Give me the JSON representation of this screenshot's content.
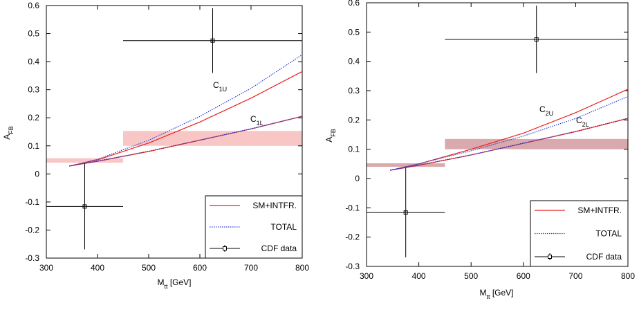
{
  "chart_data": [
    {
      "type": "line",
      "xlabel": {
        "base": "M",
        "sub": "tt",
        "rest": " [GeV]"
      },
      "ylabel": {
        "base": "A",
        "sub": "FB"
      },
      "xlim": [
        300,
        800
      ],
      "xticks": [
        300,
        400,
        500,
        600,
        700,
        800
      ],
      "ylim": [
        -0.3,
        0.6
      ],
      "yticks": [
        -0.3,
        -0.2,
        -0.1,
        0,
        0.1,
        0.2,
        0.3,
        0.4,
        0.5,
        0.6
      ],
      "bands": {
        "color": "#f9c6c6",
        "items": [
          {
            "x": [
              300,
              450
            ],
            "y": [
              0.04,
              0.056
            ]
          },
          {
            "x": [
              450,
              800
            ],
            "y": [
              0.1,
              0.153
            ]
          }
        ]
      },
      "x": [
        345,
        400,
        500,
        600,
        700,
        800
      ],
      "series": [
        {
          "name": "SM+INTFR.",
          "color": "#e8201c",
          "dash": false,
          "curves": [
            [
              0.028,
              0.05,
              0.11,
              0.185,
              0.27,
              0.365
            ],
            [
              0.028,
              0.045,
              0.08,
              0.12,
              0.16,
              0.205
            ]
          ]
        },
        {
          "name": "TOTAL",
          "color": "#2a3ccc",
          "dash": true,
          "curves": [
            [
              0.028,
              0.052,
              0.12,
              0.205,
              0.305,
              0.425
            ],
            [
              0.028,
              0.046,
              0.081,
              0.121,
              0.161,
              0.206
            ]
          ]
        },
        {
          "name": "CDF data",
          "color": "#000000",
          "type": "errorbar",
          "x": [
            375,
            625
          ],
          "xlow": [
            300,
            450
          ],
          "xhigh": [
            450,
            800
          ],
          "values": [
            -0.116,
            0.475
          ],
          "errors": [
            0.153,
            0.115
          ]
        }
      ],
      "annotations": [
        {
          "base": "C",
          "sub": "1U"
        },
        {
          "base": "C",
          "sub": "1L"
        }
      ]
    },
    {
      "type": "line",
      "xlabel": {
        "base": "M",
        "sub": "tt",
        "rest": " [GeV]"
      },
      "ylabel": {
        "base": "A",
        "sub": "FB"
      },
      "xlim": [
        300,
        800
      ],
      "xticks": [
        300,
        400,
        500,
        600,
        700,
        800
      ],
      "ylim": [
        -0.3,
        0.6
      ],
      "yticks": [
        -0.3,
        -0.2,
        -0.1,
        0,
        0.1,
        0.2,
        0.3,
        0.4,
        0.5,
        0.6
      ],
      "bands": {
        "color": "#d9a9ae",
        "items": [
          {
            "x": [
              300,
              450
            ],
            "y": [
              0.04,
              0.052
            ]
          },
          {
            "x": [
              450,
              800
            ],
            "y": [
              0.1,
              0.135
            ]
          }
        ]
      },
      "x": [
        345,
        400,
        500,
        600,
        700,
        800
      ],
      "series": [
        {
          "name": "SM+INTFR.",
          "color": "#e8201c",
          "dash": false,
          "curves": [
            [
              0.028,
              0.05,
              0.1,
              0.155,
              0.225,
              0.305
            ],
            [
              0.028,
              0.045,
              0.08,
              0.12,
              0.16,
              0.205
            ]
          ]
        },
        {
          "name": "TOTAL",
          "color": "#2a3ccc",
          "dash": true,
          "curves": [
            [
              0.028,
              0.05,
              0.095,
              0.145,
              0.205,
              0.28
            ],
            [
              0.028,
              0.046,
              0.081,
              0.121,
              0.161,
              0.206
            ]
          ]
        },
        {
          "name": "CDF data",
          "color": "#000000",
          "type": "errorbar",
          "x": [
            375,
            625
          ],
          "xlow": [
            300,
            450
          ],
          "xhigh": [
            450,
            800
          ],
          "values": [
            -0.116,
            0.475
          ],
          "errors": [
            0.153,
            0.115
          ]
        }
      ],
      "annotations": [
        {
          "base": "C",
          "sub": "2U"
        },
        {
          "base": "C",
          "sub": "2L"
        }
      ]
    }
  ]
}
